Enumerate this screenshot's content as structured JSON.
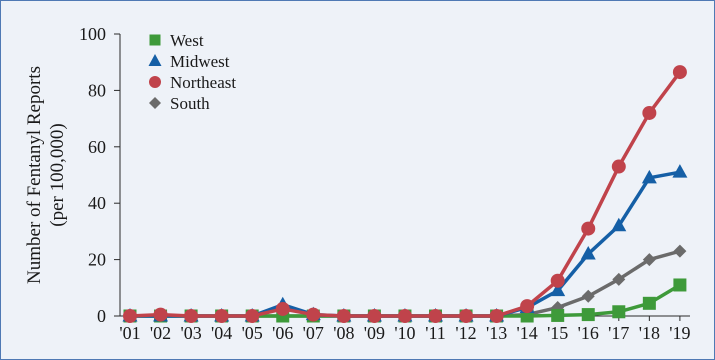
{
  "chart_data": {
    "type": "line",
    "ylabel_line1": "Number of Fentanyl Reports",
    "ylabel_line2": "(per 100,000)",
    "xlabel": "",
    "categories": [
      "'01",
      "'02",
      "'03",
      "'04",
      "'05",
      "'06",
      "'07",
      "'08",
      "'09",
      "'10",
      "'11",
      "'12",
      "'13",
      "'14",
      "'15",
      "'16",
      "'17",
      "'18",
      "'19"
    ],
    "ylim": [
      0,
      100
    ],
    "yticks": [
      0,
      20,
      40,
      60,
      80,
      100
    ],
    "legend_position": "top-left",
    "grid": false,
    "series": [
      {
        "name": "West",
        "marker": "square",
        "color": "#3e9a3a",
        "values": [
          0,
          0,
          0,
          0,
          0,
          0,
          0,
          0,
          0,
          0,
          0,
          0,
          0,
          0,
          0.2,
          0.5,
          1.5,
          4.5,
          11
        ]
      },
      {
        "name": "Midwest",
        "marker": "triangle",
        "color": "#155fa6",
        "values": [
          0,
          0,
          0,
          0,
          0,
          4,
          0.5,
          0,
          0,
          0,
          0,
          0,
          0,
          3,
          9,
          22,
          32,
          49,
          51
        ]
      },
      {
        "name": "Northeast",
        "marker": "circle",
        "color": "#c0434b",
        "values": [
          0,
          0.5,
          0,
          0,
          0,
          2.5,
          0.5,
          0,
          0,
          0,
          0,
          0,
          0,
          3.5,
          12.5,
          31,
          53,
          72,
          86.5
        ]
      },
      {
        "name": "South",
        "marker": "diamond",
        "color": "#6b6b6b",
        "values": [
          0,
          0,
          0,
          0,
          0,
          0,
          0,
          0,
          0,
          0,
          0,
          0,
          0,
          0.5,
          3,
          7,
          13,
          20,
          23
        ]
      }
    ]
  }
}
